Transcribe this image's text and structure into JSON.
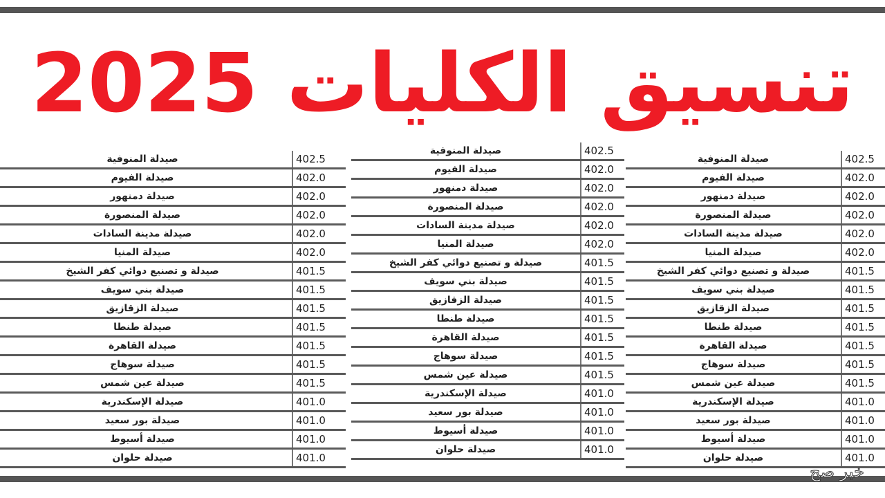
{
  "title": "تنسيق الكليات 2025",
  "watermark": "خبر صح",
  "colors": {
    "title": "#ee1c25",
    "rule": "#555555"
  },
  "rows": [
    {
      "name": "صيدلة المنوفية",
      "score": "402.5"
    },
    {
      "name": "صيدلة الفيوم",
      "score": "402.0"
    },
    {
      "name": "صيدلة دمنهور",
      "score": "402.0"
    },
    {
      "name": "صيدلة المنصورة",
      "score": "402.0"
    },
    {
      "name": "صيدلة مدينة السادات",
      "score": "402.0"
    },
    {
      "name": "صيدلة المنيا",
      "score": "402.0"
    },
    {
      "name": "صيدلة و تصنيع دوائي كفر الشيخ",
      "score": "401.5"
    },
    {
      "name": "صيدلة بني سويف",
      "score": "401.5"
    },
    {
      "name": "صيدلة الزقازيق",
      "score": "401.5"
    },
    {
      "name": "صيدلة طنطا",
      "score": "401.5"
    },
    {
      "name": "صيدلة القاهرة",
      "score": "401.5"
    },
    {
      "name": "صيدلة سوهاج",
      "score": "401.5"
    },
    {
      "name": "صيدلة عين شمس",
      "score": "401.5"
    },
    {
      "name": "صيدلة الإسكندرية",
      "score": "401.0"
    },
    {
      "name": "صيدلة بور سعيد",
      "score": "401.0"
    },
    {
      "name": "صيدلة أسيوط",
      "score": "401.0"
    },
    {
      "name": "صيدلة حلوان",
      "score": "401.0"
    }
  ]
}
